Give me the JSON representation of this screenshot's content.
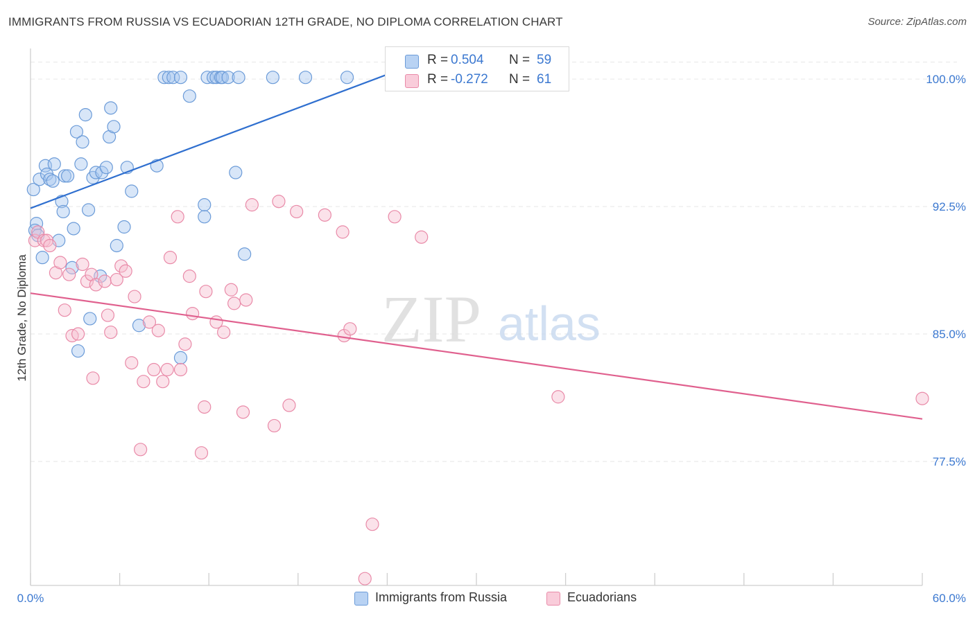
{
  "title": "IMMIGRANTS FROM RUSSIA VS ECUADORIAN 12TH GRADE, NO DIPLOMA CORRELATION CHART",
  "source": "Source: ZipAtlas.com",
  "watermark": {
    "zip": "ZIP",
    "atlas": "atlas"
  },
  "colors": {
    "blue_fill": "#a9c8ef",
    "blue_stroke": "#6b9bd8",
    "blue_line": "#2f6fcf",
    "blue_text": "#3b78d0",
    "pink_fill": "#f6bfd0",
    "pink_stroke": "#e98aa8",
    "pink_line": "#e0608e",
    "pink_text": "#d94f7f",
    "grid": "#e6e6e6"
  },
  "legend": {
    "rows": [
      {
        "r_label": "R =",
        "r_value": "0.504",
        "n_label": "N =",
        "n_value": "59"
      },
      {
        "r_label": "R =",
        "r_value": "-0.272",
        "n_label": "N =",
        "n_value": "61"
      }
    ]
  },
  "bottom_legend": [
    "Immigrants from Russia",
    "Ecuadorians"
  ],
  "chart_data": {
    "type": "scatter",
    "title": "IMMIGRANTS FROM RUSSIA VS ECUADORIAN 12TH GRADE, NO DIPLOMA CORRELATION CHART",
    "xlabel": "",
    "ylabel": "12th Grade, No Diploma",
    "xlim": [
      0,
      60
    ],
    "ylim": [
      70.2,
      101.8
    ],
    "x_tick_labels": [
      "0.0%",
      "60.0%"
    ],
    "y_ticks": [
      77.5,
      85.0,
      92.5,
      100.0
    ],
    "y_tick_labels": [
      "77.5%",
      "85.0%",
      "92.5%",
      "100.0%"
    ],
    "grid": true,
    "legend_placement": "top-center",
    "series": [
      {
        "name": "Immigrants from Russia",
        "R": 0.504,
        "N": 59,
        "trend": {
          "x": [
            0,
            25.0
          ],
          "y": [
            92.4,
            100.6
          ]
        },
        "points": [
          [
            0.2,
            93.5
          ],
          [
            0.4,
            91.5
          ],
          [
            0.3,
            91.1
          ],
          [
            0.5,
            90.8
          ],
          [
            0.6,
            94.1
          ],
          [
            0.8,
            89.5
          ],
          [
            1.0,
            94.9
          ],
          [
            1.1,
            94.4
          ],
          [
            1.3,
            94.1
          ],
          [
            1.5,
            94.0
          ],
          [
            1.6,
            95.0
          ],
          [
            1.9,
            90.5
          ],
          [
            2.1,
            92.8
          ],
          [
            2.2,
            92.2
          ],
          [
            2.3,
            94.3
          ],
          [
            2.5,
            94.3
          ],
          [
            2.8,
            88.9
          ],
          [
            2.9,
            91.2
          ],
          [
            3.1,
            96.9
          ],
          [
            3.2,
            84.0
          ],
          [
            3.4,
            95.0
          ],
          [
            3.5,
            96.3
          ],
          [
            3.7,
            97.9
          ],
          [
            3.9,
            92.3
          ],
          [
            4.0,
            85.9
          ],
          [
            4.2,
            94.2
          ],
          [
            4.4,
            94.5
          ],
          [
            4.7,
            88.4
          ],
          [
            4.8,
            94.5
          ],
          [
            5.1,
            94.8
          ],
          [
            5.3,
            96.6
          ],
          [
            5.4,
            98.3
          ],
          [
            5.6,
            97.2
          ],
          [
            5.8,
            90.2
          ],
          [
            6.3,
            91.3
          ],
          [
            6.5,
            94.8
          ],
          [
            6.8,
            93.4
          ],
          [
            7.3,
            85.5
          ],
          [
            8.5,
            94.9
          ],
          [
            9.0,
            100.1
          ],
          [
            9.3,
            100.1
          ],
          [
            9.6,
            100.1
          ],
          [
            10.1,
            100.1
          ],
          [
            10.1,
            83.6
          ],
          [
            10.7,
            99.0
          ],
          [
            11.7,
            92.6
          ],
          [
            11.7,
            91.9
          ],
          [
            11.9,
            100.1
          ],
          [
            12.3,
            100.1
          ],
          [
            12.5,
            100.1
          ],
          [
            12.8,
            100.1
          ],
          [
            12.9,
            100.1
          ],
          [
            13.3,
            100.1
          ],
          [
            13.8,
            94.5
          ],
          [
            14.0,
            100.1
          ],
          [
            14.4,
            89.7
          ],
          [
            16.3,
            100.1
          ],
          [
            18.5,
            100.1
          ],
          [
            21.3,
            100.1
          ]
        ]
      },
      {
        "name": "Ecuadorians",
        "R": -0.272,
        "N": 61,
        "trend": {
          "x": [
            0,
            60
          ],
          "y": [
            87.4,
            80.0
          ]
        },
        "points": [
          [
            0.3,
            90.5
          ],
          [
            0.5,
            91.0
          ],
          [
            0.9,
            90.5
          ],
          [
            1.1,
            90.5
          ],
          [
            1.3,
            90.2
          ],
          [
            1.7,
            88.6
          ],
          [
            2.0,
            89.2
          ],
          [
            2.3,
            86.4
          ],
          [
            2.6,
            88.5
          ],
          [
            2.8,
            84.9
          ],
          [
            3.2,
            85.0
          ],
          [
            3.5,
            89.1
          ],
          [
            3.8,
            88.1
          ],
          [
            4.1,
            88.5
          ],
          [
            4.2,
            82.4
          ],
          [
            4.4,
            87.9
          ],
          [
            5.0,
            88.1
          ],
          [
            5.2,
            86.1
          ],
          [
            5.4,
            85.1
          ],
          [
            5.8,
            88.2
          ],
          [
            6.1,
            89.0
          ],
          [
            6.4,
            88.7
          ],
          [
            6.8,
            83.3
          ],
          [
            7.0,
            87.2
          ],
          [
            7.4,
            78.2
          ],
          [
            7.6,
            82.2
          ],
          [
            8.0,
            85.7
          ],
          [
            8.3,
            82.9
          ],
          [
            8.6,
            85.2
          ],
          [
            8.9,
            82.2
          ],
          [
            9.2,
            82.9
          ],
          [
            9.4,
            89.5
          ],
          [
            9.9,
            91.9
          ],
          [
            10.1,
            82.9
          ],
          [
            10.4,
            84.4
          ],
          [
            10.7,
            88.4
          ],
          [
            10.9,
            86.2
          ],
          [
            11.5,
            78.0
          ],
          [
            11.7,
            80.7
          ],
          [
            11.8,
            87.5
          ],
          [
            12.5,
            85.7
          ],
          [
            13.0,
            85.1
          ],
          [
            13.5,
            87.6
          ],
          [
            13.7,
            86.8
          ],
          [
            14.3,
            80.4
          ],
          [
            14.5,
            87.0
          ],
          [
            14.9,
            92.6
          ],
          [
            16.4,
            79.6
          ],
          [
            16.7,
            92.8
          ],
          [
            17.4,
            80.8
          ],
          [
            17.9,
            92.2
          ],
          [
            19.8,
            92.0
          ],
          [
            21.0,
            91.0
          ],
          [
            21.1,
            84.9
          ],
          [
            21.5,
            85.3
          ],
          [
            22.5,
            70.6
          ],
          [
            23.0,
            73.8
          ],
          [
            24.5,
            91.9
          ],
          [
            26.3,
            90.7
          ],
          [
            35.5,
            81.3
          ],
          [
            60.0,
            81.2
          ]
        ]
      }
    ]
  }
}
